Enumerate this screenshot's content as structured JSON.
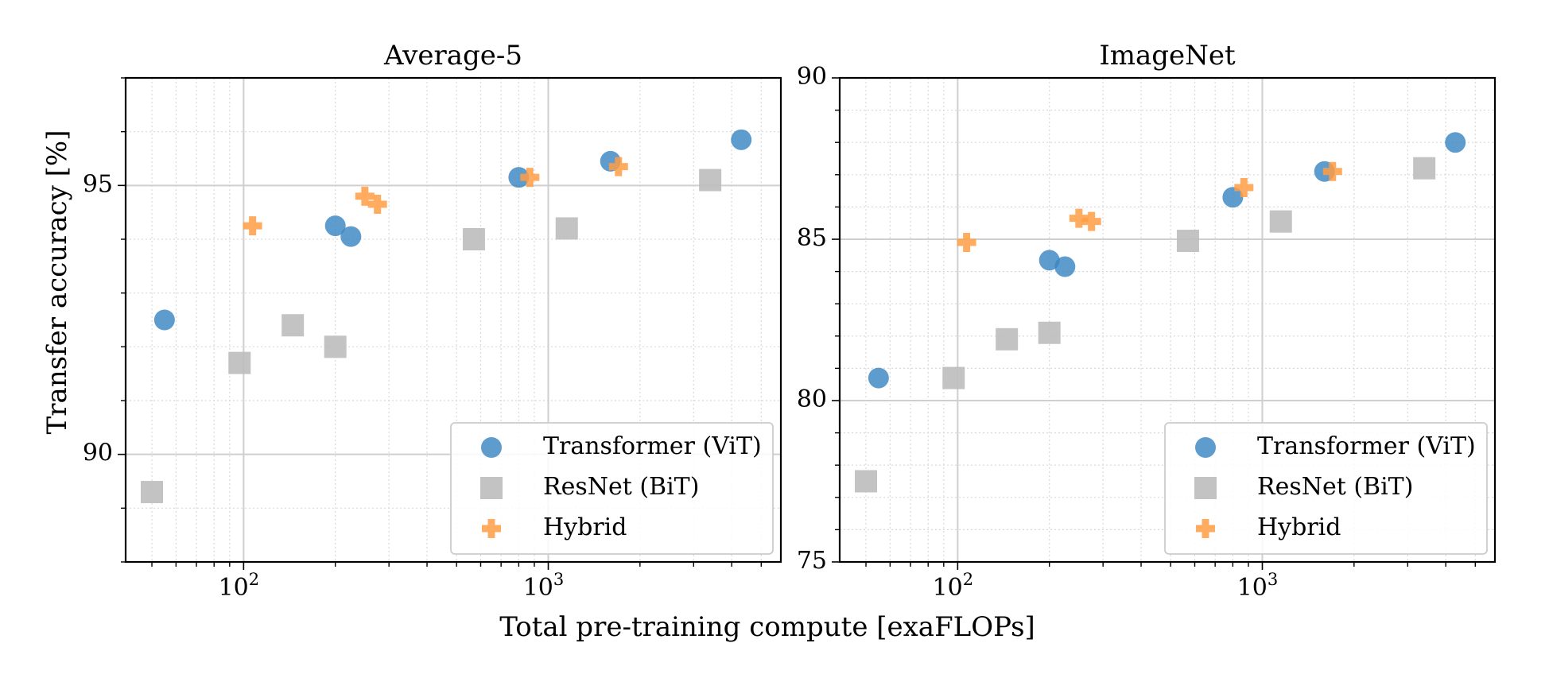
{
  "figure": {
    "ylabel": "Transfer accuracy [%]",
    "xlabel": "Total pre-training compute [exaFLOPs]"
  },
  "colors": {
    "transformer": "#3b86c2",
    "resnet": "#bdbdbd",
    "hybrid": "#ff9d45",
    "grid_major": "#cfcfcf",
    "grid_minor": "#d9d9d9"
  },
  "legend": {
    "placement": "lower-right",
    "items": [
      {
        "series": "transformer",
        "marker": "circle",
        "label": "Transformer (ViT)"
      },
      {
        "series": "resnet",
        "marker": "square",
        "label": "ResNet (BiT)"
      },
      {
        "series": "hybrid",
        "marker": "plus",
        "label": "Hybrid"
      }
    ]
  },
  "chart_data": [
    {
      "type": "scatter",
      "title": "Average-5",
      "xscale": "log",
      "xlim": [
        41,
        5800
      ],
      "ylim": [
        88,
        97
      ],
      "grid": true,
      "xticks": [
        {
          "value": 100,
          "base": "10",
          "exp": "2"
        },
        {
          "value": 1000,
          "base": "10",
          "exp": "3"
        }
      ],
      "yticks": [
        {
          "value": 90,
          "label": "90"
        },
        {
          "value": 95,
          "label": "95"
        }
      ],
      "series": [
        {
          "name": "Transformer (ViT)",
          "key": "transformer",
          "marker": "circle",
          "x": [
            55,
            200,
            225,
            800,
            1600,
            4300
          ],
          "y": [
            92.5,
            94.25,
            94.05,
            95.15,
            95.45,
            95.85
          ]
        },
        {
          "name": "ResNet (BiT)",
          "key": "resnet",
          "marker": "square",
          "x": [
            50,
            97,
            145,
            200,
            570,
            1150,
            3400
          ],
          "y": [
            89.3,
            91.7,
            92.4,
            92.0,
            94.0,
            94.2,
            95.1
          ]
        },
        {
          "name": "Hybrid",
          "key": "hybrid",
          "marker": "plus",
          "x": [
            107,
            250,
            275,
            870,
            1700
          ],
          "y": [
            94.25,
            94.8,
            94.65,
            95.15,
            95.35
          ]
        }
      ]
    },
    {
      "type": "scatter",
      "title": "ImageNet",
      "xscale": "log",
      "xlim": [
        41,
        5800
      ],
      "ylim": [
        75,
        90
      ],
      "grid": true,
      "xticks": [
        {
          "value": 100,
          "base": "10",
          "exp": "2"
        },
        {
          "value": 1000,
          "base": "10",
          "exp": "3"
        }
      ],
      "yticks": [
        {
          "value": 75,
          "label": "75"
        },
        {
          "value": 80,
          "label": "80"
        },
        {
          "value": 85,
          "label": "85"
        },
        {
          "value": 90,
          "label": "90"
        }
      ],
      "series": [
        {
          "name": "Transformer (ViT)",
          "key": "transformer",
          "marker": "circle",
          "x": [
            55,
            200,
            225,
            800,
            1600,
            4300
          ],
          "y": [
            80.7,
            84.35,
            84.15,
            86.3,
            87.1,
            88.0
          ]
        },
        {
          "name": "ResNet (BiT)",
          "key": "resnet",
          "marker": "square",
          "x": [
            50,
            97,
            145,
            200,
            570,
            1150,
            3400
          ],
          "y": [
            77.5,
            80.7,
            81.9,
            82.1,
            84.95,
            85.55,
            87.2
          ]
        },
        {
          "name": "Hybrid",
          "key": "hybrid",
          "marker": "plus",
          "x": [
            107,
            250,
            275,
            870,
            1700
          ],
          "y": [
            84.9,
            85.65,
            85.55,
            86.6,
            87.1
          ]
        }
      ]
    }
  ]
}
